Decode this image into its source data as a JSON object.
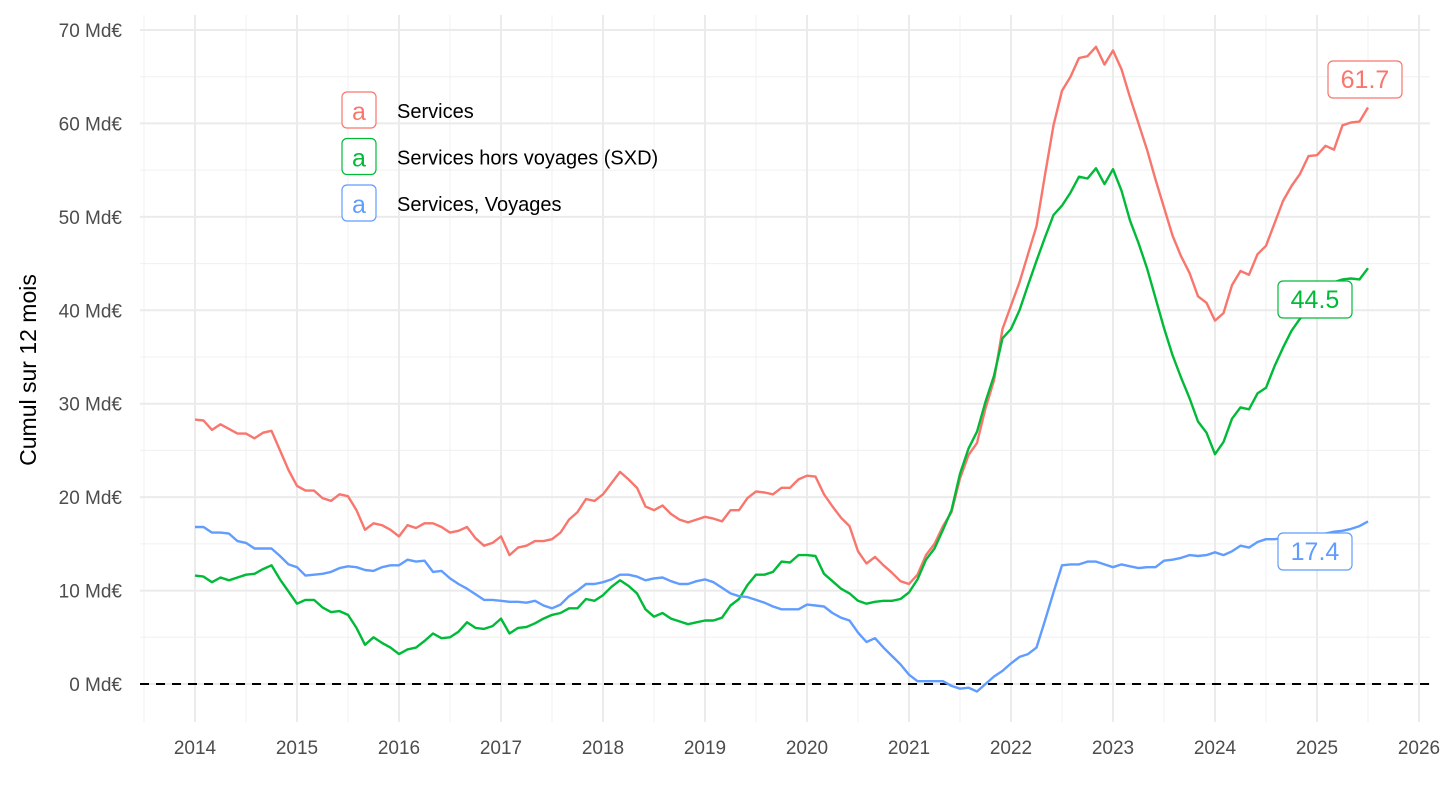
{
  "chart_data": {
    "type": "line",
    "title": "",
    "xlabel": "",
    "ylabel": "Cumul sur 12 mois",
    "xlim": [
      2013.5,
      2026
    ],
    "ylim": [
      -4,
      72
    ],
    "x_ticks": [
      "2014",
      "2015",
      "2016",
      "2017",
      "2018",
      "2019",
      "2020",
      "2021",
      "2022",
      "2023",
      "2024",
      "2025",
      "2026"
    ],
    "y_ticks": [
      "0 Md€",
      "10 Md€",
      "20 Md€",
      "30 Md€",
      "40 Md€",
      "50 Md€",
      "60 Md€",
      "70 Md€"
    ],
    "y_tick_values": [
      0,
      10,
      20,
      30,
      40,
      50,
      60,
      70
    ],
    "grid": true,
    "legend_position": "top-left",
    "legend_key": "a",
    "reference_line": {
      "y": 0,
      "style": "dashed"
    },
    "x_start": 2014.0,
    "x_step_months": 1,
    "series": [
      {
        "name": "Services",
        "color": "#F8766D",
        "end_label": "61.7",
        "values": [
          28.3,
          28.2,
          27.2,
          27.8,
          27.3,
          26.8,
          26.8,
          26.3,
          26.9,
          27.1,
          25.0,
          22.9,
          21.2,
          20.7,
          20.7,
          19.9,
          19.6,
          20.3,
          20.1,
          18.6,
          16.5,
          17.2,
          17.0,
          16.5,
          15.8,
          17.0,
          16.7,
          17.2,
          17.2,
          16.8,
          16.2,
          16.4,
          16.8,
          15.6,
          14.8,
          15.1,
          15.8,
          13.8,
          14.6,
          14.8,
          15.3,
          15.3,
          15.5,
          16.2,
          17.6,
          18.4,
          19.8,
          19.6,
          20.3,
          21.5,
          22.7,
          21.9,
          21.0,
          19.0,
          18.6,
          19.1,
          18.2,
          17.6,
          17.3,
          17.6,
          17.9,
          17.7,
          17.4,
          18.6,
          18.6,
          19.9,
          20.6,
          20.5,
          20.3,
          21.0,
          21.0,
          21.9,
          22.3,
          22.2,
          20.3,
          19.0,
          17.8,
          16.9,
          14.2,
          12.9,
          13.6,
          12.7,
          11.9,
          11.0,
          10.7,
          11.7,
          13.8,
          15.0,
          16.9,
          18.4,
          22.0,
          24.5,
          25.8,
          29.5,
          32.5,
          38.0,
          40.5,
          43.0,
          46.0,
          49.0,
          54.5,
          59.8,
          63.5,
          65.0,
          67.0,
          67.2,
          68.2,
          66.3,
          67.8,
          65.8,
          62.8,
          60.0,
          57.2,
          54.0,
          51.0,
          48.0,
          45.8,
          44.0,
          41.5,
          40.8,
          38.9,
          39.7,
          42.7,
          44.2,
          43.8,
          46.0,
          46.9,
          49.3,
          51.7,
          53.3,
          54.6,
          56.5,
          56.6,
          57.6,
          57.2,
          59.8,
          60.1,
          60.2,
          61.7
        ]
      },
      {
        "name": "Services hors voyages (SXD)",
        "color": "#00BA38",
        "end_label": "44.5",
        "values": [
          11.6,
          11.5,
          10.9,
          11.4,
          11.1,
          11.4,
          11.7,
          11.8,
          12.3,
          12.7,
          11.2,
          9.9,
          8.6,
          9.0,
          9.0,
          8.2,
          7.7,
          7.8,
          7.4,
          6.0,
          4.2,
          5.0,
          4.4,
          3.9,
          3.2,
          3.7,
          3.9,
          4.6,
          5.4,
          4.9,
          5.0,
          5.6,
          6.6,
          6.0,
          5.9,
          6.2,
          7.0,
          5.4,
          6.0,
          6.1,
          6.5,
          7.0,
          7.4,
          7.6,
          8.1,
          8.1,
          9.1,
          8.9,
          9.5,
          10.4,
          11.1,
          10.5,
          9.7,
          8.0,
          7.2,
          7.6,
          7.0,
          6.7,
          6.4,
          6.6,
          6.8,
          6.8,
          7.1,
          8.4,
          9.1,
          10.6,
          11.7,
          11.7,
          12.0,
          13.1,
          13.0,
          13.8,
          13.8,
          13.7,
          11.8,
          11.0,
          10.2,
          9.7,
          8.9,
          8.6,
          8.8,
          8.9,
          8.9,
          9.1,
          9.8,
          11.2,
          13.3,
          14.5,
          16.5,
          18.6,
          22.5,
          25.2,
          27.0,
          30.2,
          33.0,
          37.0,
          38.0,
          40.0,
          42.7,
          45.3,
          47.8,
          50.2,
          51.2,
          52.6,
          54.3,
          54.1,
          55.2,
          53.5,
          55.1,
          52.8,
          49.6,
          47.2,
          44.5,
          41.3,
          38.1,
          35.2,
          32.8,
          30.6,
          28.1,
          26.9,
          24.6,
          25.9,
          28.4,
          29.6,
          29.4,
          31.1,
          31.7,
          34.0,
          36.0,
          37.8,
          39.1,
          40.0,
          41.5,
          42.3,
          43.0,
          43.3,
          43.4,
          43.3,
          44.5
        ]
      },
      {
        "name": "Services, Voyages",
        "color": "#619CFF",
        "end_label": "17.4",
        "values": [
          16.8,
          16.8,
          16.2,
          16.2,
          16.1,
          15.3,
          15.1,
          14.5,
          14.5,
          14.5,
          13.7,
          12.8,
          12.5,
          11.6,
          11.7,
          11.8,
          12.0,
          12.4,
          12.6,
          12.5,
          12.2,
          12.1,
          12.5,
          12.7,
          12.7,
          13.3,
          13.1,
          13.2,
          12.0,
          12.1,
          11.3,
          10.7,
          10.2,
          9.6,
          9.0,
          9.0,
          8.9,
          8.8,
          8.8,
          8.7,
          8.9,
          8.4,
          8.1,
          8.5,
          9.4,
          10.0,
          10.7,
          10.7,
          10.9,
          11.2,
          11.7,
          11.7,
          11.5,
          11.1,
          11.3,
          11.4,
          11.0,
          10.7,
          10.7,
          11.0,
          11.2,
          10.9,
          10.3,
          9.7,
          9.4,
          9.3,
          9.0,
          8.7,
          8.3,
          8.0,
          8.0,
          8.0,
          8.5,
          8.4,
          8.3,
          7.6,
          7.1,
          6.8,
          5.5,
          4.5,
          4.9,
          3.9,
          3.0,
          2.1,
          1.0,
          0.3,
          0.3,
          0.3,
          0.3,
          -0.2,
          -0.5,
          -0.4,
          -0.8,
          0.0,
          0.8,
          1.4,
          2.2,
          2.9,
          3.2,
          3.9,
          6.8,
          9.8,
          12.7,
          12.8,
          12.8,
          13.1,
          13.1,
          12.8,
          12.5,
          12.8,
          12.6,
          12.4,
          12.5,
          12.5,
          13.2,
          13.3,
          13.5,
          13.8,
          13.7,
          13.8,
          14.1,
          13.8,
          14.2,
          14.8,
          14.6,
          15.2,
          15.5,
          15.5,
          15.6,
          15.7,
          15.8,
          16.0,
          16.0,
          16.1,
          16.3,
          16.4,
          16.6,
          16.9,
          17.4
        ]
      }
    ]
  }
}
